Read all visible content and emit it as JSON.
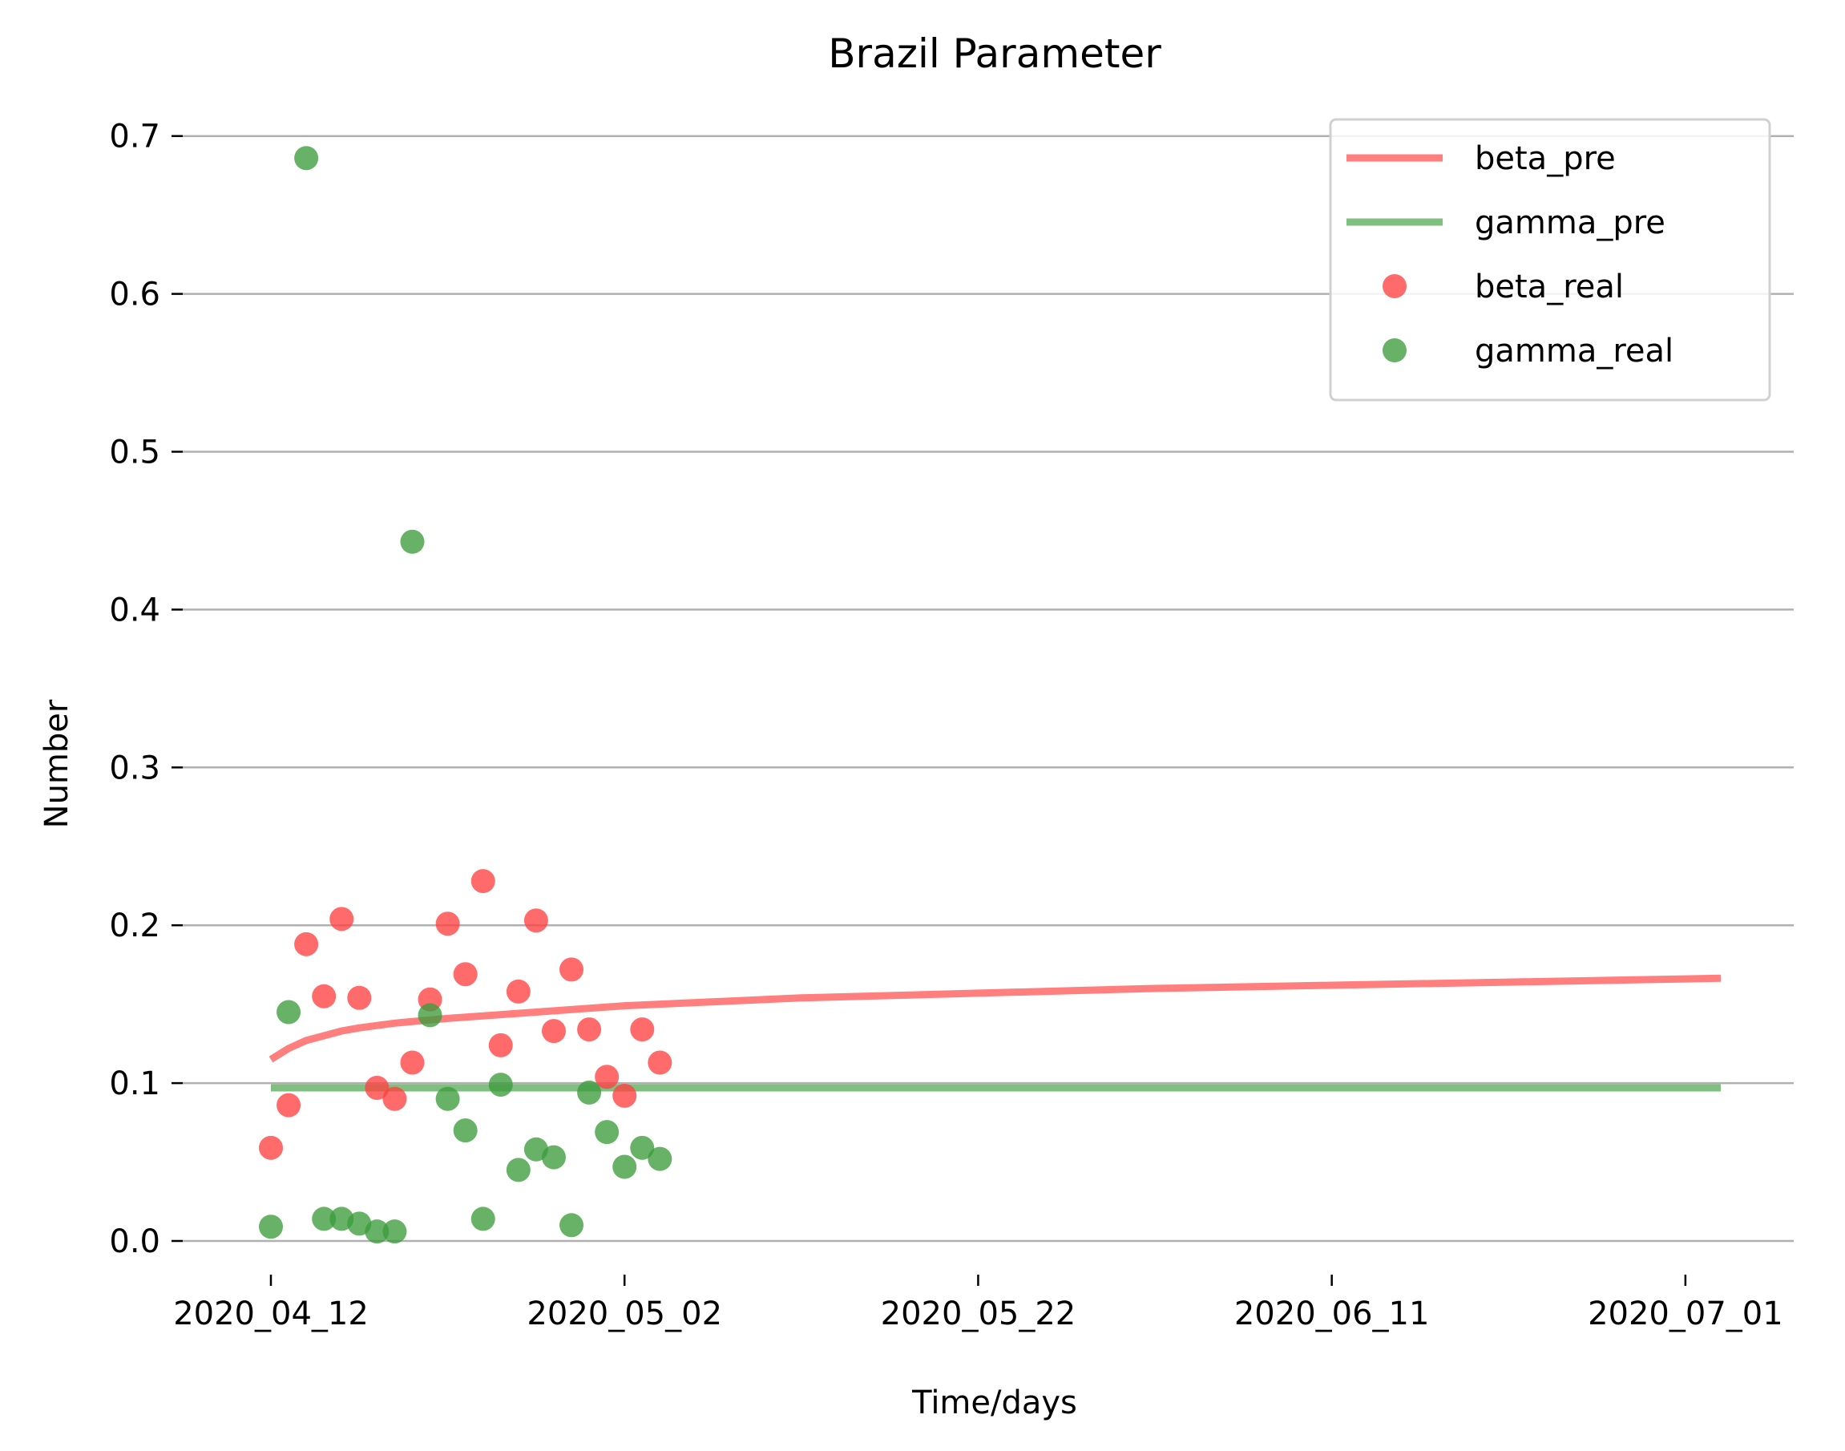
{
  "chart_data": {
    "type": "line+scatter",
    "title": "Brazil Parameter",
    "xlabel": "Time/days",
    "ylabel": "Number",
    "x_axis": {
      "type": "date",
      "start": "2020-04-12",
      "end": "2020-07-03",
      "ticks": [
        "2020-04-12",
        "2020-05-02",
        "2020-05-22",
        "2020-06-11",
        "2020-07-01"
      ],
      "tick_labels": [
        "2020_04_12",
        "2020_05_02",
        "2020_05_22",
        "2020_06_11",
        "2020_07_01"
      ]
    },
    "y_axis": {
      "ylim": [
        -0.03,
        0.72
      ],
      "ticks": [
        0.0,
        0.1,
        0.2,
        0.3,
        0.4,
        0.5,
        0.6,
        0.7
      ],
      "tick_labels": [
        "0.0",
        "0.1",
        "0.2",
        "0.3",
        "0.4",
        "0.5",
        "0.6",
        "0.7"
      ]
    },
    "grid": "horizontal",
    "legend_position": "top-right",
    "series": [
      {
        "name": "beta_pre",
        "type": "line",
        "color": "#ff7f7f",
        "points": [
          [
            "2020-04-12",
            0.115
          ],
          [
            "2020-04-13",
            0.122
          ],
          [
            "2020-04-14",
            0.127
          ],
          [
            "2020-04-15",
            0.13
          ],
          [
            "2020-04-16",
            0.133
          ],
          [
            "2020-04-17",
            0.135
          ],
          [
            "2020-04-19",
            0.138
          ],
          [
            "2020-04-22",
            0.141
          ],
          [
            "2020-04-27",
            0.145
          ],
          [
            "2020-05-02",
            0.149
          ],
          [
            "2020-05-12",
            0.154
          ],
          [
            "2020-05-22",
            0.157
          ],
          [
            "2020-06-01",
            0.16
          ],
          [
            "2020-06-11",
            0.162
          ],
          [
            "2020-06-21",
            0.164
          ],
          [
            "2020-07-01",
            0.166
          ],
          [
            "2020-07-03",
            0.1665
          ]
        ]
      },
      {
        "name": "gamma_pre",
        "type": "line",
        "color": "#7fbf7f",
        "points": [
          [
            "2020-04-12",
            0.097
          ],
          [
            "2020-07-03",
            0.097
          ]
        ]
      },
      {
        "name": "beta_real",
        "type": "scatter",
        "color": "#ff4040",
        "points": [
          [
            "2020-04-12",
            0.059
          ],
          [
            "2020-04-13",
            0.086
          ],
          [
            "2020-04-14",
            0.188
          ],
          [
            "2020-04-15",
            0.155
          ],
          [
            "2020-04-16",
            0.204
          ],
          [
            "2020-04-17",
            0.154
          ],
          [
            "2020-04-18",
            0.097
          ],
          [
            "2020-04-19",
            0.09
          ],
          [
            "2020-04-20",
            0.113
          ],
          [
            "2020-04-21",
            0.153
          ],
          [
            "2020-04-22",
            0.201
          ],
          [
            "2020-04-23",
            0.169
          ],
          [
            "2020-04-24",
            0.228
          ],
          [
            "2020-04-25",
            0.124
          ],
          [
            "2020-04-26",
            0.158
          ],
          [
            "2020-04-27",
            0.203
          ],
          [
            "2020-04-28",
            0.133
          ],
          [
            "2020-04-29",
            0.172
          ],
          [
            "2020-04-30",
            0.134
          ],
          [
            "2020-05-01",
            0.104
          ],
          [
            "2020-05-02",
            0.092
          ],
          [
            "2020-05-03",
            0.134
          ],
          [
            "2020-05-04",
            0.113
          ]
        ]
      },
      {
        "name": "gamma_real",
        "type": "scatter",
        "color": "#3c9c3c",
        "points": [
          [
            "2020-04-12",
            0.009
          ],
          [
            "2020-04-13",
            0.145
          ],
          [
            "2020-04-14",
            0.686
          ],
          [
            "2020-04-15",
            0.014
          ],
          [
            "2020-04-16",
            0.014
          ],
          [
            "2020-04-17",
            0.011
          ],
          [
            "2020-04-18",
            0.006
          ],
          [
            "2020-04-19",
            0.006
          ],
          [
            "2020-04-20",
            0.443
          ],
          [
            "2020-04-21",
            0.143
          ],
          [
            "2020-04-22",
            0.09
          ],
          [
            "2020-04-23",
            0.07
          ],
          [
            "2020-04-24",
            0.014
          ],
          [
            "2020-04-25",
            0.099
          ],
          [
            "2020-04-26",
            0.045
          ],
          [
            "2020-04-27",
            0.058
          ],
          [
            "2020-04-28",
            0.053
          ],
          [
            "2020-04-29",
            0.01
          ],
          [
            "2020-04-30",
            0.094
          ],
          [
            "2020-05-01",
            0.069
          ],
          [
            "2020-05-02",
            0.047
          ],
          [
            "2020-05-03",
            0.059
          ],
          [
            "2020-05-04",
            0.052
          ]
        ]
      }
    ]
  }
}
